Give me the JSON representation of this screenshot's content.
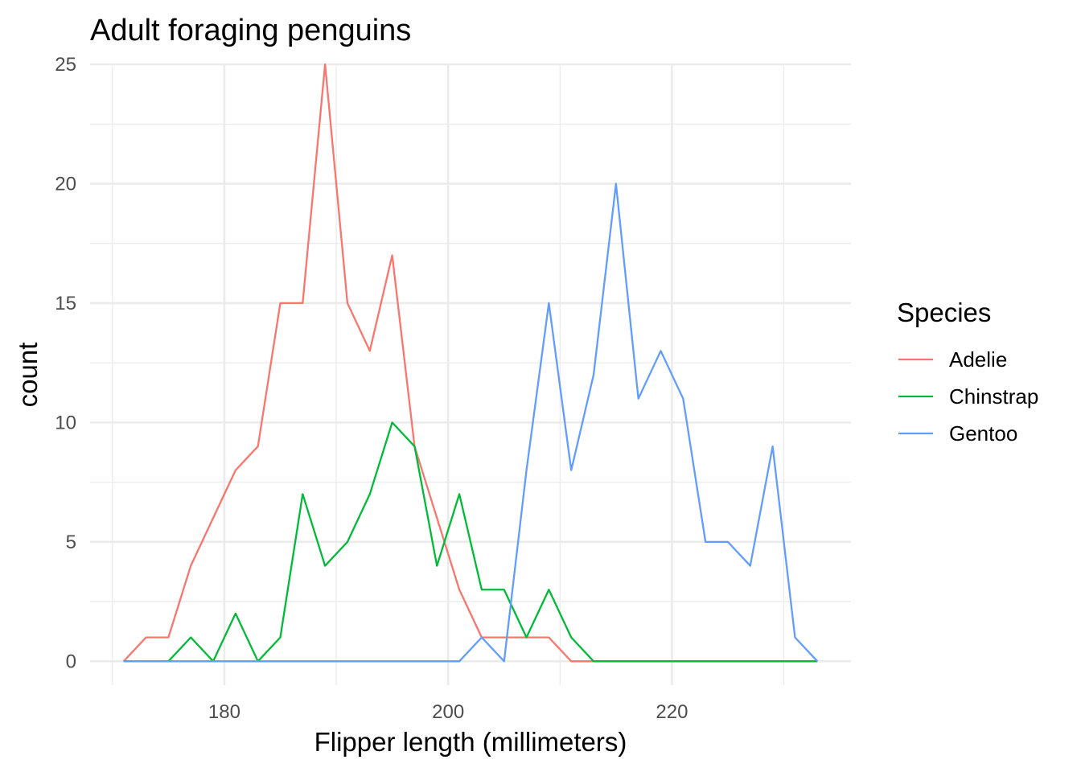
{
  "chart_data": {
    "type": "line",
    "title": "Adult foraging penguins",
    "xlabel": "Flipper length (millimeters)",
    "ylabel": "count",
    "xlim": [
      168,
      236
    ],
    "ylim": [
      -1,
      25
    ],
    "x_major_ticks": [
      180,
      200,
      220
    ],
    "x_minor_ticks": [
      170,
      190,
      210,
      230
    ],
    "y_major_ticks": [
      0,
      5,
      10,
      15,
      20,
      25
    ],
    "y_minor_ticks": [
      2.5,
      7.5,
      12.5,
      17.5,
      22.5
    ],
    "grid": true,
    "legend": {
      "title": "Species",
      "position": "right"
    },
    "x": [
      171,
      173,
      175,
      177,
      179,
      181,
      183,
      185,
      187,
      189,
      191,
      193,
      195,
      197,
      199,
      201,
      203,
      205,
      207,
      209,
      211,
      213,
      215,
      217,
      219,
      221,
      223,
      225,
      227,
      229,
      231,
      233
    ],
    "series": [
      {
        "name": "Adelie",
        "color": "#F8766D",
        "values": [
          0,
          1,
          1,
          4,
          6,
          8,
          9,
          15,
          15,
          25,
          15,
          13,
          17,
          9,
          6,
          3,
          1,
          1,
          1,
          1,
          0,
          0,
          0,
          0,
          0,
          0,
          0,
          0,
          0,
          0,
          0,
          0
        ]
      },
      {
        "name": "Chinstrap",
        "color": "#00BA38",
        "values": [
          0,
          0,
          0,
          1,
          0,
          2,
          0,
          1,
          7,
          4,
          5,
          7,
          10,
          9,
          4,
          7,
          3,
          3,
          1,
          3,
          1,
          0,
          0,
          0,
          0,
          0,
          0,
          0,
          0,
          0,
          0,
          0
        ]
      },
      {
        "name": "Gentoo",
        "color": "#619CFF",
        "values": [
          0,
          0,
          0,
          0,
          0,
          0,
          0,
          0,
          0,
          0,
          0,
          0,
          0,
          0,
          0,
          0,
          1,
          0,
          8,
          15,
          8,
          12,
          20,
          11,
          13,
          11,
          5,
          5,
          4,
          9,
          1,
          0
        ]
      }
    ]
  }
}
